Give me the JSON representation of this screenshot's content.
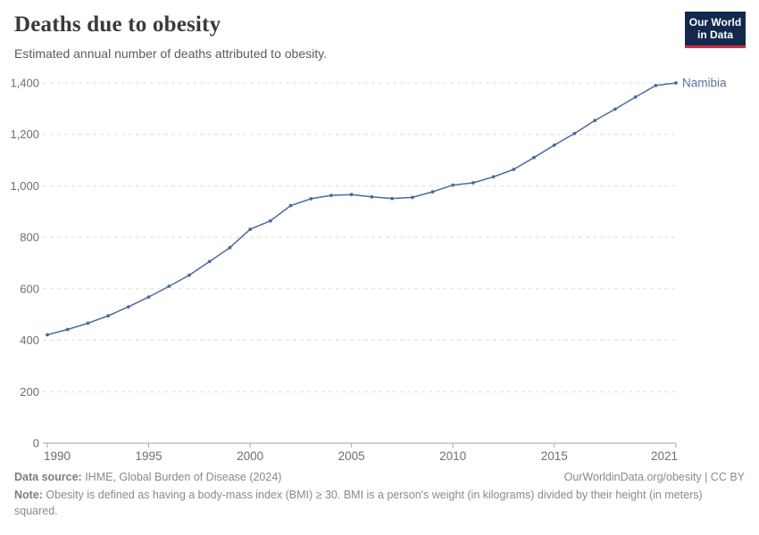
{
  "header": {
    "title": "Deaths due to obesity",
    "subtitle": "Estimated annual number of deaths attributed to obesity.",
    "logo": {
      "line1": "Our World",
      "line2": "in Data"
    }
  },
  "chart_data": {
    "type": "line",
    "title": "Deaths due to obesity",
    "xlabel": "",
    "ylabel": "",
    "x": [
      1990,
      1991,
      1992,
      1993,
      1994,
      1995,
      1996,
      1997,
      1998,
      1999,
      2000,
      2001,
      2002,
      2003,
      2004,
      2005,
      2006,
      2007,
      2008,
      2009,
      2010,
      2011,
      2012,
      2013,
      2014,
      2015,
      2016,
      2017,
      2018,
      2019,
      2020,
      2021
    ],
    "series": [
      {
        "name": "Namibia",
        "color": "#4c6a9d",
        "values": [
          421,
          442,
          466,
          495,
          530,
          568,
          610,
          653,
          706,
          760,
          831,
          864,
          923,
          950,
          963,
          966,
          957,
          951,
          955,
          977,
          1003,
          1012,
          1035,
          1064,
          1110,
          1158,
          1204,
          1254,
          1298,
          1345,
          1390,
          1400
        ]
      }
    ],
    "ylim": [
      0,
      1400
    ],
    "yticks": [
      0,
      200,
      400,
      600,
      800,
      1000,
      1200,
      1400
    ],
    "ytick_labels": [
      "0",
      "200",
      "400",
      "600",
      "800",
      "1,000",
      "1,200",
      "1,400"
    ],
    "xticks": [
      1990,
      1995,
      2000,
      2005,
      2010,
      2015,
      2021
    ],
    "xtick_labels": [
      "1990",
      "1995",
      "2000",
      "2005",
      "2010",
      "2015",
      "2021"
    ],
    "grid": "horizontal-dashed",
    "legend_position": "end-of-line-label",
    "entity_label": "Namibia",
    "entity_label_color": "#59749f",
    "gridline_color": "#dcdcdc",
    "axis_color": "#a5a5a5",
    "tick_label_color": "#6e6e6e"
  },
  "footer": {
    "source_label": "Data source:",
    "source_text": " IHME, Global Burden of Disease (2024)",
    "link": "OurWorldinData.org/obesity | CC BY",
    "note_label": "Note:",
    "note_text": " Obesity is defined as having a body-mass index (BMI) ≥ 30. BMI is a person's weight (in kilograms) divided by their height (in meters) squared."
  }
}
